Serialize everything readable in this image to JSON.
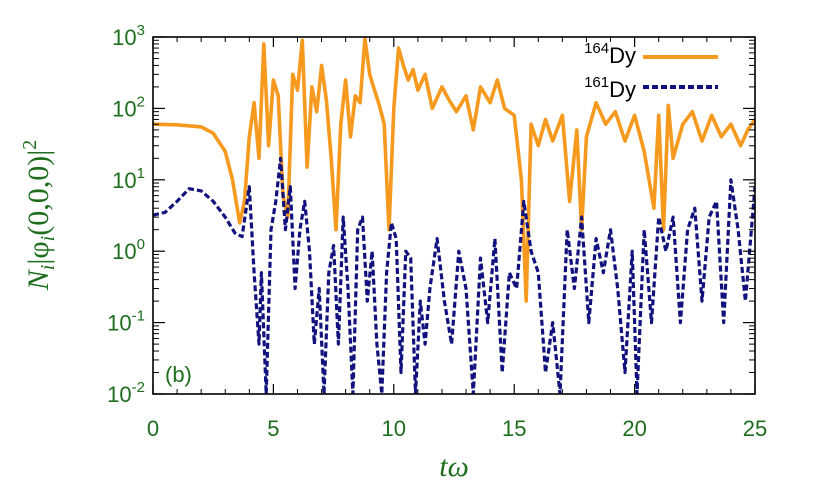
{
  "colors": {
    "text": "#1e6e1e",
    "dy164": "#f59a1e",
    "dy161": "#12127e",
    "axis": "#000000"
  },
  "chart_data": {
    "type": "line",
    "panel_label": "(b)",
    "xlabel": "tω",
    "ylabel": "N_i|φ_i(0,0,0)|²",
    "xlim": [
      0,
      25
    ],
    "ylim": [
      0.01,
      1000
    ],
    "yscale": "log",
    "grid": false,
    "legend_position": "top-right",
    "x_ticks": [
      "0",
      "5",
      "10",
      "15",
      "20",
      "25"
    ],
    "y_ticks": [
      {
        "base": "10",
        "exp": "-2"
      },
      {
        "base": "10",
        "exp": "-1"
      },
      {
        "base": "10",
        "exp": "0"
      },
      {
        "base": "10",
        "exp": "1"
      },
      {
        "base": "10",
        "exp": "2"
      },
      {
        "base": "10",
        "exp": "3"
      }
    ],
    "series": [
      {
        "name": "164Dy",
        "legend_sup": "164",
        "legend_base": "Dy",
        "color": "#f59a1e",
        "style": "solid",
        "x": [
          0,
          1,
          2,
          2.5,
          3,
          3.3,
          3.6,
          3.8,
          4.0,
          4.2,
          4.4,
          4.6,
          4.8,
          5.0,
          5.2,
          5.4,
          5.6,
          5.8,
          6.0,
          6.2,
          6.4,
          6.6,
          6.8,
          7.0,
          7.2,
          7.4,
          7.6,
          7.8,
          8.0,
          8.2,
          8.4,
          8.6,
          8.8,
          9.0,
          9.2,
          9.4,
          9.6,
          9.8,
          10.0,
          10.2,
          10.4,
          10.6,
          10.8,
          11.0,
          11.3,
          11.6,
          12.0,
          12.3,
          12.6,
          13.0,
          13.3,
          13.6,
          14.0,
          14.3,
          14.6,
          15.0,
          15.3,
          15.5,
          15.7,
          16.0,
          16.3,
          16.6,
          17.0,
          17.3,
          17.6,
          17.8,
          18.0,
          18.4,
          18.8,
          19.2,
          19.6,
          20.0,
          20.4,
          20.8,
          21.0,
          21.2,
          21.4,
          21.6,
          22.0,
          22.4,
          22.8,
          23.2,
          23.6,
          24.0,
          24.4,
          24.7,
          25.0
        ],
        "values": [
          60,
          59,
          55,
          45,
          25,
          10,
          2.5,
          5,
          40,
          120,
          20,
          800,
          30,
          250,
          150,
          6,
          3,
          300,
          180,
          900,
          15,
          200,
          90,
          400,
          130,
          20,
          2,
          60,
          250,
          40,
          150,
          120,
          950,
          300,
          180,
          110,
          60,
          2,
          100,
          700,
          400,
          250,
          350,
          180,
          300,
          100,
          200,
          130,
          90,
          150,
          50,
          200,
          120,
          250,
          100,
          80,
          10,
          0.2,
          60,
          30,
          70,
          35,
          80,
          5,
          50,
          2,
          40,
          120,
          60,
          90,
          35,
          80,
          25,
          4,
          80,
          2,
          110,
          20,
          60,
          90,
          35,
          80,
          40,
          60,
          30,
          50,
          70
        ]
      },
      {
        "name": "161Dy",
        "legend_sup": "161",
        "legend_base": "Dy",
        "color": "#12127e",
        "style": "dashed",
        "x": [
          0,
          0.5,
          1,
          1.5,
          2,
          2.5,
          3,
          3.4,
          3.7,
          4.0,
          4.2,
          4.4,
          4.5,
          4.7,
          4.9,
          5.1,
          5.3,
          5.5,
          5.7,
          5.9,
          6.1,
          6.3,
          6.5,
          6.7,
          6.9,
          7.1,
          7.3,
          7.5,
          7.7,
          7.9,
          8.1,
          8.3,
          8.5,
          8.7,
          8.9,
          9.1,
          9.3,
          9.5,
          9.7,
          9.9,
          10.1,
          10.3,
          10.5,
          10.7,
          10.9,
          11.1,
          11.3,
          11.5,
          11.8,
          12.1,
          12.4,
          12.7,
          13.0,
          13.3,
          13.6,
          13.9,
          14.2,
          14.5,
          14.8,
          15.1,
          15.4,
          15.7,
          16.0,
          16.3,
          16.6,
          16.9,
          17.2,
          17.5,
          17.8,
          18.1,
          18.4,
          18.7,
          19.0,
          19.3,
          19.6,
          19.9,
          20.1,
          20.4,
          20.7,
          21.0,
          21.3,
          21.6,
          21.9,
          22.2,
          22.5,
          22.8,
          23.1,
          23.4,
          23.7,
          24.0,
          24.3,
          24.6,
          25.0
        ],
        "values": [
          3.2,
          3.5,
          5,
          7.5,
          7,
          5,
          3,
          1.8,
          1.6,
          8,
          0.5,
          0.05,
          0.5,
          0.01,
          2,
          5,
          20,
          2,
          8,
          0.3,
          2,
          5,
          1,
          0.05,
          0.3,
          0.01,
          0.5,
          1.2,
          0.05,
          3,
          0.3,
          0.01,
          2,
          3,
          0.2,
          1,
          0.05,
          0.01,
          0.5,
          2.5,
          1.5,
          0.02,
          1,
          0.8,
          0.01,
          0.2,
          0.05,
          0.3,
          1.5,
          0.2,
          0.05,
          1,
          0.3,
          0.01,
          0.8,
          0.1,
          1.5,
          0.02,
          0.5,
          0.3,
          5,
          1,
          0.5,
          0.02,
          0.1,
          0.01,
          2,
          0.3,
          3,
          0.1,
          1.5,
          0.5,
          2,
          0.3,
          0.02,
          1,
          0.01,
          2,
          0.1,
          3,
          1,
          3,
          0.1,
          2,
          4,
          0.2,
          3,
          5,
          0.1,
          10,
          2,
          0.2,
          8
        ]
      }
    ]
  }
}
